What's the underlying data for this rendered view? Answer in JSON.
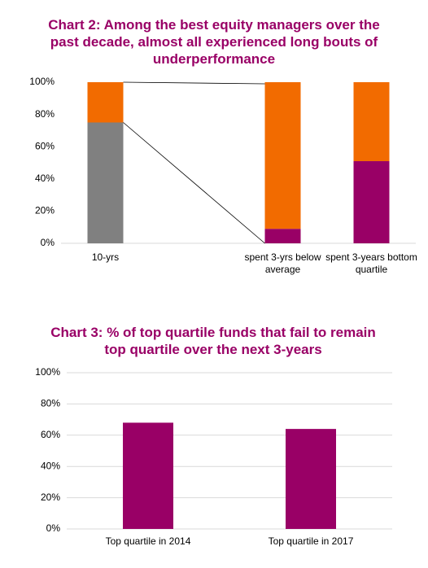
{
  "chart_data": [
    {
      "type": "bar",
      "stacked": true,
      "grid": false,
      "title": "Chart 2: Among the best equity managers over the past decade, almost all experienced long bouts of underperformance",
      "categories": [
        "10-yrs",
        null,
        "spent 3-yrs below average",
        "spent 3-years bottom quartile"
      ],
      "series": [
        {
          "color": "#808080",
          "values": [
            75,
            null,
            null,
            null
          ]
        },
        {
          "color": "#990066",
          "values": [
            null,
            null,
            9,
            51
          ]
        },
        {
          "color": "#f26b00",
          "values": [
            25,
            null,
            91,
            49
          ]
        }
      ],
      "ylim": [
        0,
        100
      ],
      "yticks": [
        {
          "value": 0,
          "label": "0%"
        },
        {
          "value": 20,
          "label": "20%"
        },
        {
          "value": 40,
          "label": "40%"
        },
        {
          "value": 60,
          "label": "60%"
        },
        {
          "value": 80,
          "label": "80%"
        },
        {
          "value": 100,
          "label": "100%"
        }
      ]
    },
    {
      "type": "bar",
      "stacked": false,
      "grid": true,
      "title": "Chart 3: % of top quartile funds that fail to remain top quartile over the next 3-years",
      "categories": [
        "Top quartile in 2014",
        "Top quartile in 2017"
      ],
      "series": [
        {
          "color": "#990066",
          "values": [
            68,
            64
          ]
        }
      ],
      "ylim": [
        0,
        100
      ],
      "yticks": [
        {
          "value": 0,
          "label": "0%"
        },
        {
          "value": 20,
          "label": "20%"
        },
        {
          "value": 40,
          "label": "40%"
        },
        {
          "value": 60,
          "label": "60%"
        },
        {
          "value": 80,
          "label": "80%"
        },
        {
          "value": 100,
          "label": "100%"
        }
      ]
    }
  ]
}
